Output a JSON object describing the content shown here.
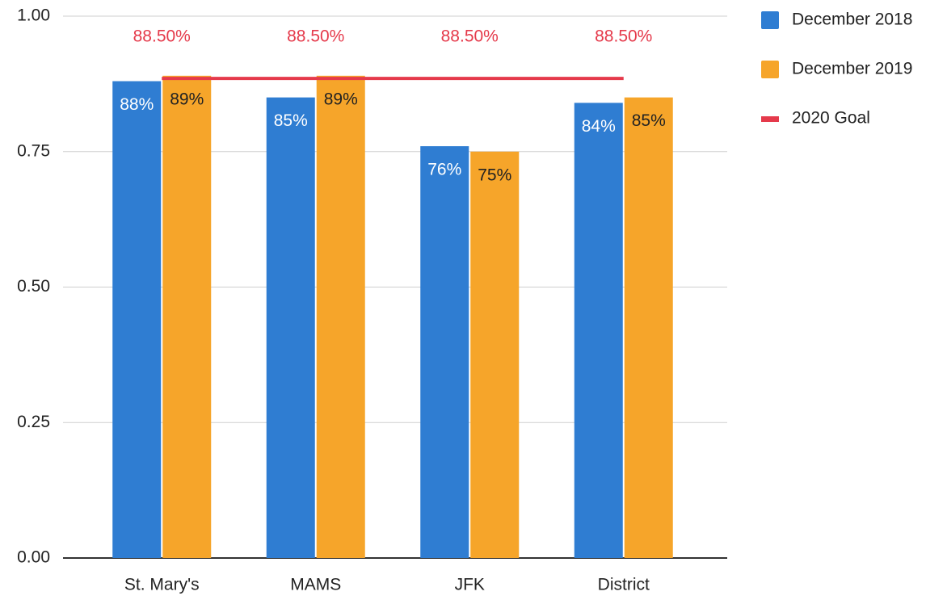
{
  "chart_data": {
    "type": "bar",
    "categories": [
      "St. Mary's",
      "MAMS",
      "JFK",
      "District"
    ],
    "series": [
      {
        "name": "December 2018",
        "color": "#2f7dd2",
        "type": "bar",
        "values": [
          0.88,
          0.85,
          0.76,
          0.84
        ],
        "value_labels": [
          "88%",
          "85%",
          "76%",
          "84%"
        ]
      },
      {
        "name": "December 2019",
        "color": "#f6a52a",
        "type": "bar",
        "values": [
          0.89,
          0.89,
          0.75,
          0.85
        ],
        "value_labels": [
          "89%",
          "89%",
          "75%",
          "85%"
        ]
      },
      {
        "name": "2020 Goal",
        "color": "#e53a4b",
        "type": "line",
        "values": [
          0.885,
          0.885,
          0.885,
          0.885
        ],
        "value_labels": [
          "88.50%",
          "88.50%",
          "88.50%",
          "88.50%"
        ]
      }
    ],
    "ylim": [
      0,
      1
    ],
    "yticks": [
      {
        "value": 0,
        "label": "0.00"
      },
      {
        "value": 0.25,
        "label": "0.25"
      },
      {
        "value": 0.5,
        "label": "0.50"
      },
      {
        "value": 0.75,
        "label": "0.75"
      },
      {
        "value": 1,
        "label": "1.00"
      }
    ],
    "grid": true,
    "legend": "right"
  }
}
